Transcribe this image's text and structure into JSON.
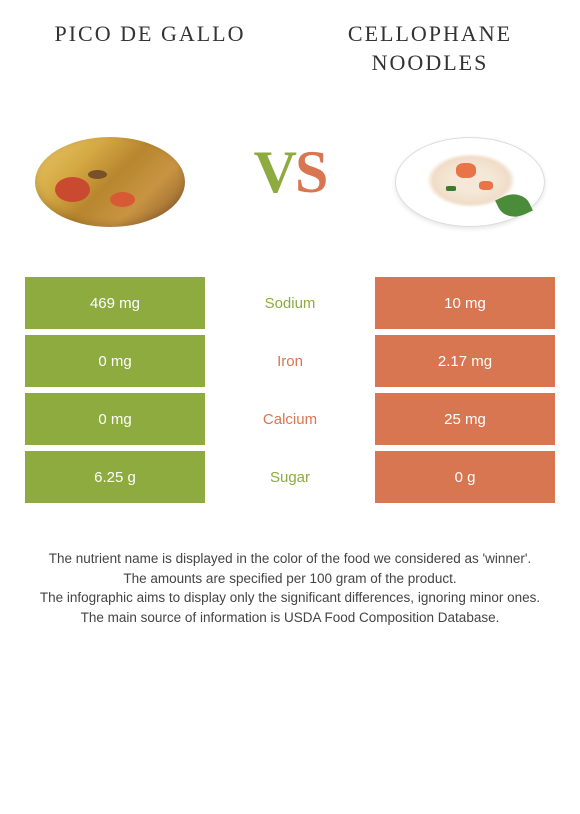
{
  "food_left": {
    "name": "PICO DE GALLO",
    "color": "#8dab3e"
  },
  "food_right": {
    "name": "CELLOPHANE NOODLES",
    "color": "#d87652"
  },
  "vs_label": {
    "v": "V",
    "s": "S"
  },
  "rows": [
    {
      "left": "469 mg",
      "label": "Sodium",
      "right": "10 mg",
      "winner": "left"
    },
    {
      "left": "0 mg",
      "label": "Iron",
      "right": "2.17 mg",
      "winner": "right"
    },
    {
      "left": "0 mg",
      "label": "Calcium",
      "right": "25 mg",
      "winner": "right"
    },
    {
      "left": "6.25 g",
      "label": "Sugar",
      "right": "0 g",
      "winner": "left"
    }
  ],
  "footer": {
    "line1": "The nutrient name is displayed in the color of the food we considered as 'winner'.",
    "line2": "The amounts are specified per 100 gram of the product.",
    "line3": "The infographic aims to display only the significant differences, ignoring minor ones.",
    "line4": "The main source of information is USDA Food Composition Database."
  }
}
